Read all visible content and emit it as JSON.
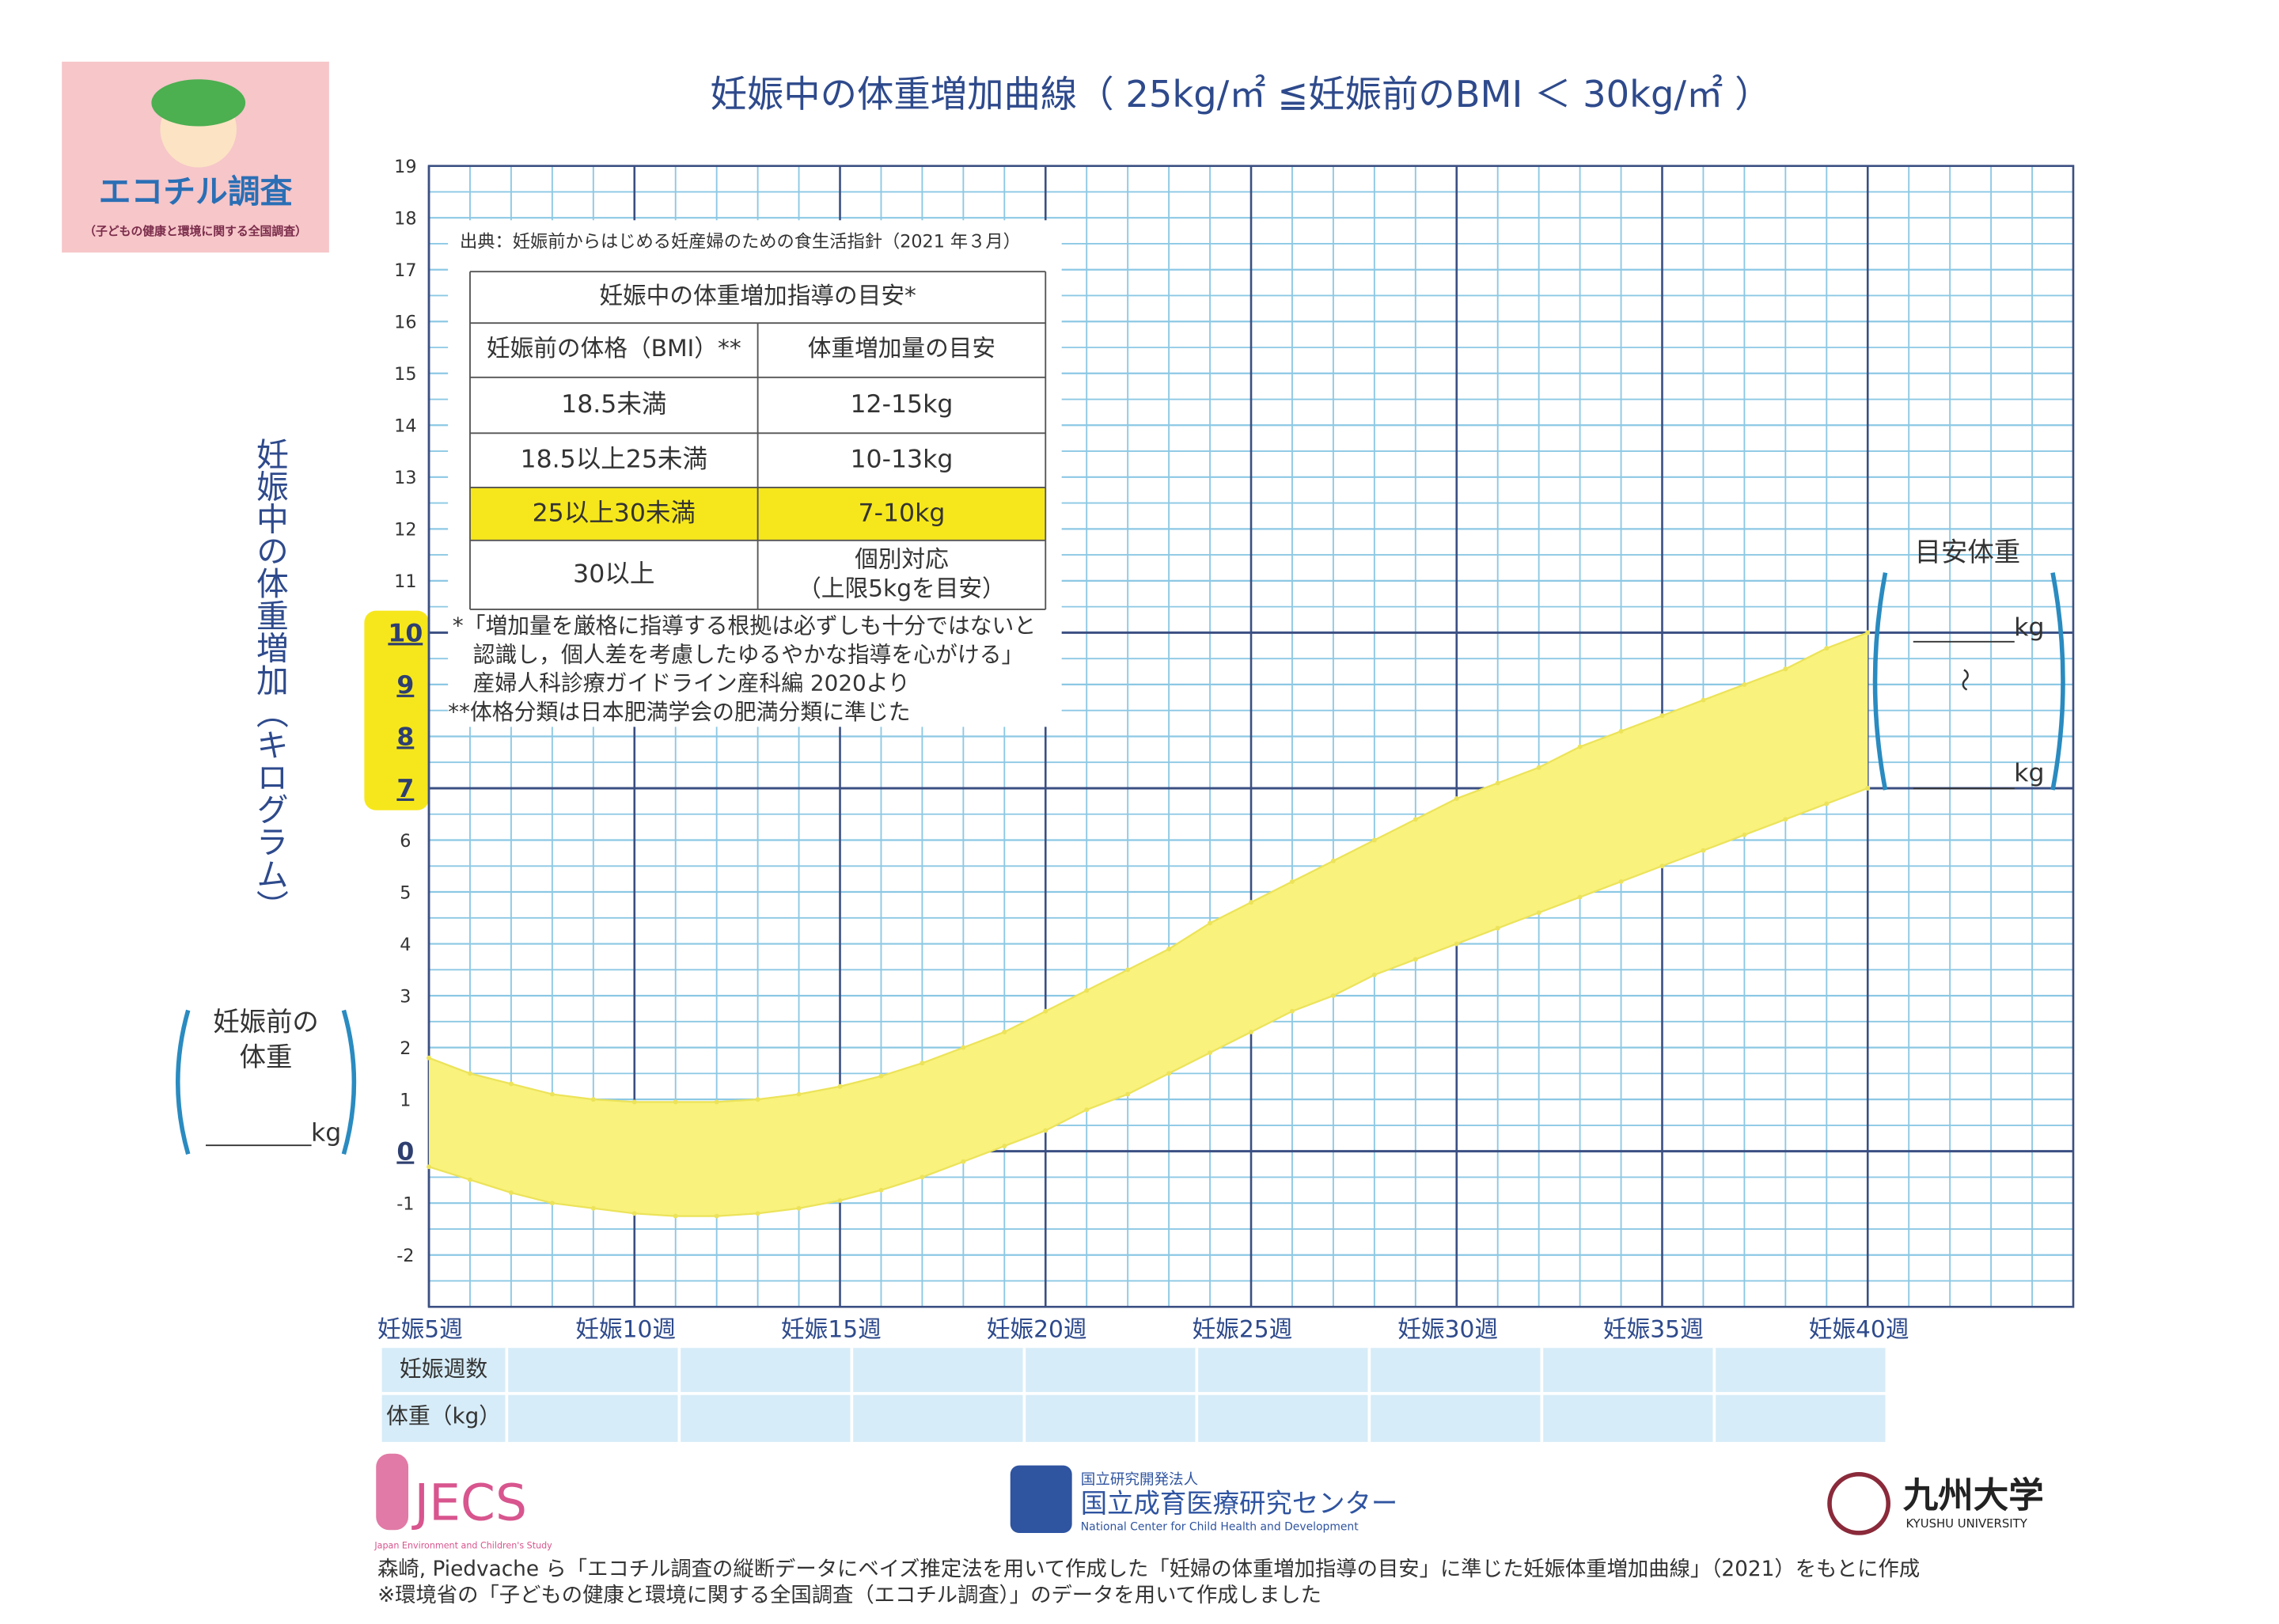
{
  "logo": {
    "title": "エコチル調査",
    "subtitle": "（子どもの健康と環境に関する全国調査）"
  },
  "chart_data": {
    "type": "band",
    "title": "妊娠中の体重増加曲線（ 25kg/㎡ ≦妊娠前のBMI ＜ 30kg/㎡ ）",
    "y_label": "妊娠中の体重増加（キログラム）",
    "x": [
      5,
      6,
      7,
      8,
      9,
      10,
      11,
      12,
      13,
      14,
      15,
      16,
      17,
      18,
      19,
      20,
      21,
      22,
      23,
      24,
      25,
      26,
      27,
      28,
      29,
      30,
      31,
      32,
      33,
      34,
      35,
      36,
      37,
      38,
      39,
      40
    ],
    "upper": [
      1.8,
      1.5,
      1.3,
      1.1,
      1.0,
      0.95,
      0.95,
      0.95,
      1.0,
      1.1,
      1.25,
      1.45,
      1.7,
      2.0,
      2.3,
      2.7,
      3.1,
      3.5,
      3.9,
      4.4,
      4.8,
      5.2,
      5.6,
      6.0,
      6.4,
      6.8,
      7.1,
      7.4,
      7.8,
      8.1,
      8.4,
      8.7,
      9.0,
      9.3,
      9.7,
      10.0
    ],
    "lower": [
      -0.3,
      -0.55,
      -0.8,
      -1.0,
      -1.1,
      -1.2,
      -1.25,
      -1.25,
      -1.2,
      -1.1,
      -0.95,
      -0.75,
      -0.5,
      -0.2,
      0.1,
      0.4,
      0.8,
      1.1,
      1.5,
      1.9,
      2.3,
      2.7,
      3.0,
      3.4,
      3.7,
      4.0,
      4.3,
      4.6,
      4.9,
      5.2,
      5.5,
      5.8,
      6.1,
      6.4,
      6.7,
      7.0
    ],
    "color": "#f9f27c",
    "line_color": "#ece35a",
    "xlim": [
      5,
      45
    ],
    "xticks": [
      {
        "value": 5,
        "label": "妊娠5週"
      },
      {
        "value": 10,
        "label": "妊娠10週"
      },
      {
        "value": 15,
        "label": "妊娠15週"
      },
      {
        "value": 20,
        "label": "妊娠20週"
      },
      {
        "value": 25,
        "label": "妊娠25週"
      },
      {
        "value": 30,
        "label": "妊娠30週"
      },
      {
        "value": 35,
        "label": "妊娠35週"
      },
      {
        "value": 40,
        "label": "妊娠40週"
      }
    ],
    "ylim": [
      -3,
      19
    ],
    "yticks": [
      -2,
      -1,
      0,
      1,
      2,
      3,
      4,
      5,
      6,
      7,
      8,
      9,
      10,
      11,
      12,
      13,
      14,
      15,
      16,
      17,
      18,
      19
    ],
    "highlight_range": [
      7,
      10
    ],
    "grid": true
  },
  "pre_weight": {
    "label_lines": [
      "妊娠前の",
      "体重"
    ],
    "unit": "kg"
  },
  "target_weight": {
    "label": "目安体重",
    "unit_upper": "kg",
    "separator": "〜",
    "unit_lower": "kg"
  },
  "guide": {
    "source": "出典：妊娠前からはじめる妊産婦のための食生活指針（2021 年３月）",
    "table": {
      "title": "妊娠中の体重増加指導の目安*",
      "header": [
        "妊娠前の体格（BMI）**",
        "体重増加量の目安"
      ],
      "rows": [
        [
          "18.5未満",
          "12-15kg"
        ],
        [
          "18.5以上25未満",
          "10-13kg"
        ],
        [
          "25以上30未満",
          "7-10kg"
        ],
        [
          "30以上",
          [
            "個別対応",
            "（上限5kgを目安）"
          ]
        ]
      ],
      "highlight_row": 2
    },
    "notes": [
      "*「増加量を厳格に指導する根拠は必ずしも十分ではないと",
      "認識し，個人差を考慮したゆるやかな指導を心がける」",
      "産婦人科診療ガイドライン産科編 2020より",
      "**体格分類は日本肥満学会の肥満分類に準じた"
    ]
  },
  "record_table": {
    "row_labels": [
      "妊娠週数",
      "体重（kg）"
    ]
  },
  "footer": {
    "jecs": {
      "name": "JECS",
      "subtitle": "Japan Environment and Children's Study"
    },
    "ncchd": {
      "prefix": "国立研究開発法人",
      "name": "国立成育医療研究センター",
      "english": "National Center for Child Health and Development"
    },
    "kyushu": {
      "name": "九州大学",
      "english": "KYUSHU UNIVERSITY"
    },
    "citation": "森崎, Piedvache ら「エコチル調査の縦断データにベイズ推定法を用いて作成した「妊婦の体重増加指導の目安」に準じた妊娠体重増加曲線」（2021）をもとに作成",
    "note": "※環境省の「子どもの健康と環境に関する全国調査（エコチル調査）」のデータを用いて作成しました"
  }
}
